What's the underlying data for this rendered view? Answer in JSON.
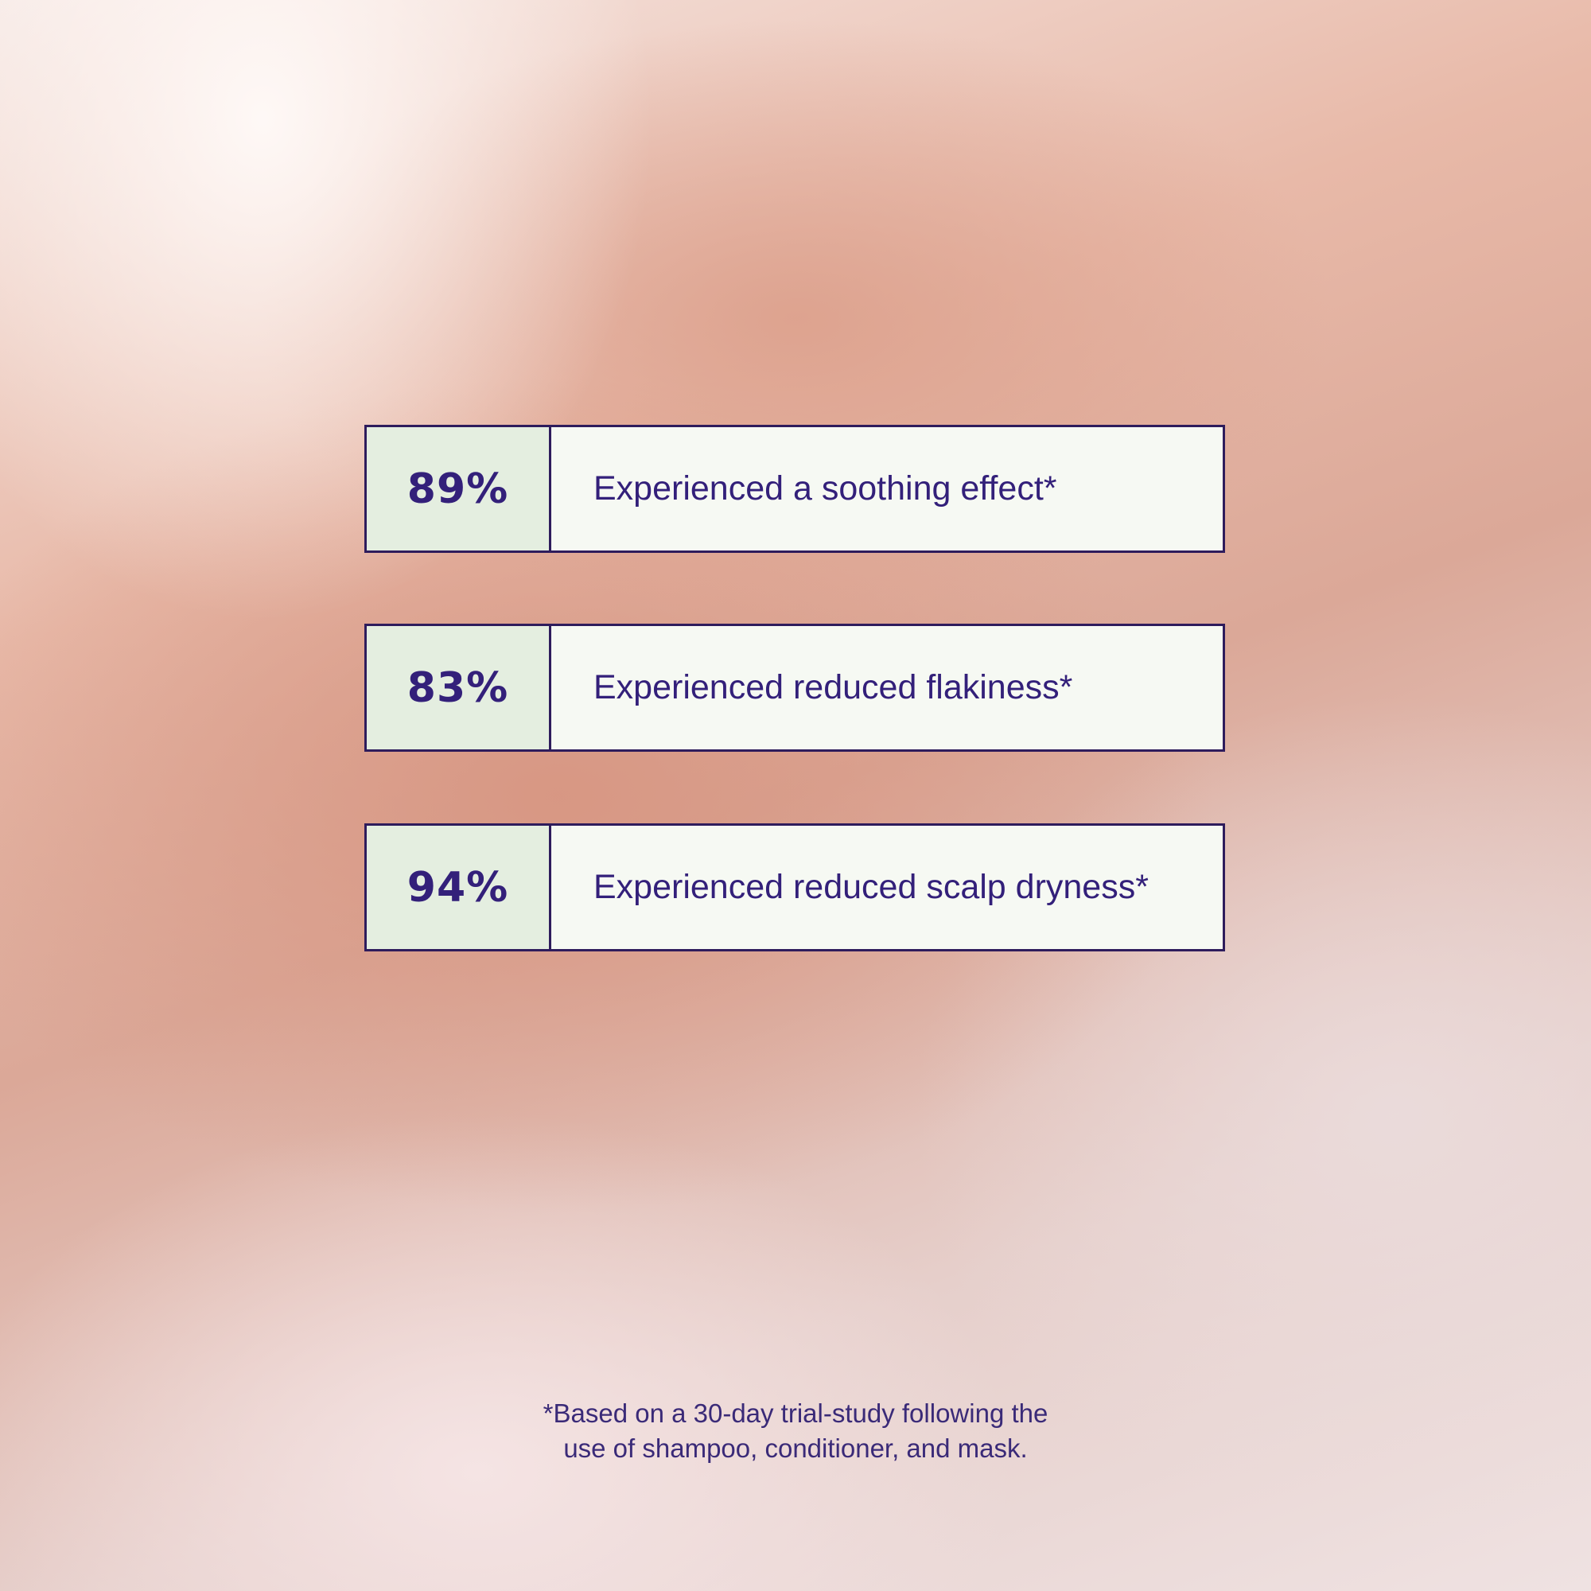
{
  "stats": [
    {
      "percent": "89%",
      "label": "Experienced a soothing effect*"
    },
    {
      "percent": "83%",
      "label": "Experienced reduced flakiness*"
    },
    {
      "percent": "94%",
      "label": "Experienced reduced scalp dryness*"
    }
  ],
  "footnote": {
    "line1": "*Based on a 30-day trial-study following the",
    "line2": "use of shampoo, conditioner, and mask."
  },
  "colors": {
    "text": "#33207a",
    "border": "#2e1c5c",
    "percent_bg": "#e4eee0",
    "label_bg": "#f6f9f3"
  }
}
